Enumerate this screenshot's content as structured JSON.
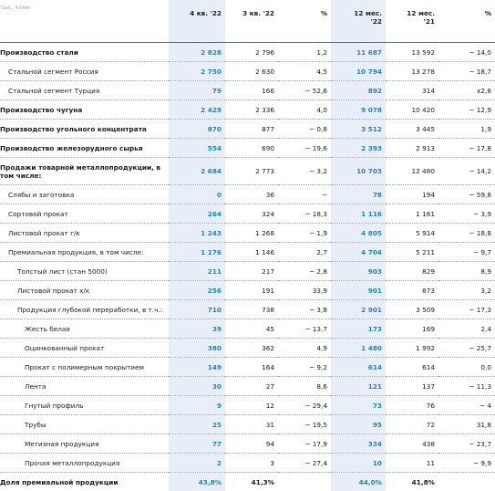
{
  "header": {
    "unit": "тыс. тонн",
    "col_q4_22": "4 кв. '22",
    "col_q3_22": "3 кв. '22",
    "col_pct1": "%",
    "col_12m_22_a": "12 мес.",
    "col_12m_22_b": "'22",
    "col_12m_21_a": "12 мес.",
    "col_12m_21_b": "'21",
    "col_pct2": "%"
  },
  "rows": [
    {
      "label": "Производство стали",
      "q4": "2 828",
      "q3": "2 796",
      "p1": "1,2",
      "y22": "11 687",
      "y21": "13 592",
      "p2": "− 14,0"
    },
    {
      "label": "Стальной сегмент Россия",
      "q4": "2 750",
      "q3": "2 630",
      "p1": "4,5",
      "y22": "10 794",
      "y21": "13 278",
      "p2": "− 18,7"
    },
    {
      "label": "Стальной сегмент Турция",
      "q4": "79",
      "q3": "166",
      "p1": "− 52,6",
      "y22": "892",
      "y21": "314",
      "p2": "x2,8"
    },
    {
      "label": "Производство чугуна",
      "q4": "2 429",
      "q3": "2 336",
      "p1": "4,0",
      "y22": "9 078",
      "y21": "10 420",
      "p2": "− 12,9"
    },
    {
      "label": "Производство угольного концентрата",
      "q4": "870",
      "q3": "877",
      "p1": "− 0,8",
      "y22": "3 512",
      "y21": "3 445",
      "p2": "1,9"
    },
    {
      "label": "Производство железорудного сырья",
      "q4": "554",
      "q3": "690",
      "p1": "− 19,6",
      "y22": "2 393",
      "y21": "2 913",
      "p2": "− 17,8"
    },
    {
      "label": "Продажи товарной металлопродукции, в том числе:",
      "q4": "2 684",
      "q3": "2 773",
      "p1": "− 3,2",
      "y22": "10 703",
      "y21": "12 480",
      "p2": "− 14,2"
    },
    {
      "label": "Слябы и заготовка",
      "q4": "0",
      "q3": "36",
      "p1": "−",
      "y22": "78",
      "y21": "194",
      "p2": "− 59,8"
    },
    {
      "label": "Сортовой прокат",
      "q4": "264",
      "q3": "324",
      "p1": "− 18,3",
      "y22": "1 116",
      "y21": "1 161",
      "p2": "− 3,9"
    },
    {
      "label": "Листовой прокат г/к",
      "q4": "1 243",
      "q3": "1 268",
      "p1": "− 1,9",
      "y22": "4 805",
      "y21": "5 914",
      "p2": "− 18,8"
    },
    {
      "label": "Премиальная продукция, в том числе:",
      "q4": "1 176",
      "q3": "1 146",
      "p1": "2,7",
      "y22": "4 704",
      "y21": "5 211",
      "p2": "− 9,7"
    },
    {
      "label": "Толстый лист (стан 5000)",
      "q4": "211",
      "q3": "217",
      "p1": "− 2,8",
      "y22": "903",
      "y21": "829",
      "p2": "8,9"
    },
    {
      "label": "Листовой прокат х/к",
      "q4": "256",
      "q3": "191",
      "p1": "33,9",
      "y22": "901",
      "y21": "873",
      "p2": "3,2"
    },
    {
      "label": "Продукция глубокой переработки, в т.ч.:",
      "q4": "710",
      "q3": "738",
      "p1": "− 3,8",
      "y22": "2 901",
      "y21": "3 509",
      "p2": "− 17,3"
    },
    {
      "label": "Жесть белая",
      "q4": "39",
      "q3": "45",
      "p1": "− 13,7",
      "y22": "173",
      "y21": "169",
      "p2": "2,4"
    },
    {
      "label": "Оцинкованный прокат",
      "q4": "380",
      "q3": "362",
      "p1": "4,9",
      "y22": "1 480",
      "y21": "1 992",
      "p2": "− 25,7"
    },
    {
      "label": "Прокат с полимерным покрытием",
      "q4": "149",
      "q3": "164",
      "p1": "− 9,2",
      "y22": "614",
      "y21": "614",
      "p2": "0,0"
    },
    {
      "label": "Лента",
      "q4": "30",
      "q3": "27",
      "p1": "8,6",
      "y22": "121",
      "y21": "137",
      "p2": "− 11,3"
    },
    {
      "label": "Гнутый профиль",
      "q4": "9",
      "q3": "12",
      "p1": "− 29,4",
      "y22": "73",
      "y21": "76",
      "p2": "− 4"
    },
    {
      "label": "Трубы",
      "q4": "25",
      "q3": "31",
      "p1": "− 19,5",
      "y22": "95",
      "y21": "72",
      "p2": "31,8"
    },
    {
      "label": "Метизная продукция",
      "q4": "77",
      "q3": "94",
      "p1": "− 17,9",
      "y22": "334",
      "y21": "438",
      "p2": "− 23,7"
    },
    {
      "label": "Прочая металлопродукция",
      "q4": "2",
      "q3": "3",
      "p1": "− 27,4",
      "y22": "10",
      "y21": "11",
      "p2": "− 9,9"
    },
    {
      "label": "Доля премиальной продукции",
      "q4": "43,8%",
      "q3": "41,3%",
      "p1": "",
      "y22": "44,0%",
      "y21": "41,8%",
      "p2": ""
    }
  ]
}
